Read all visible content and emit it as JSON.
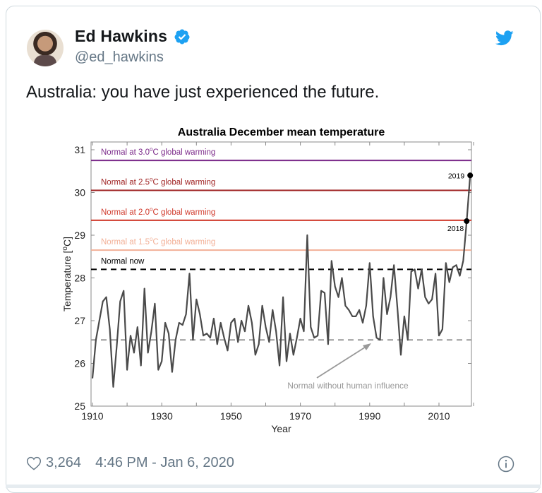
{
  "tweet": {
    "author_name": "Ed Hawkins",
    "author_handle": "@ed_hawkins",
    "verified": true,
    "text": "Australia: you have just experienced the future.",
    "likes": "3,264",
    "timestamp": "4:46 PM - Jan 6, 2020",
    "icons": {
      "verified": "verified-badge-icon",
      "brand": "twitter-bird-icon",
      "like": "heart-icon",
      "info": "info-icon"
    },
    "colors": {
      "brand": "#1da1f2",
      "text": "#14171a",
      "secondary": "#657786"
    }
  },
  "chart_data": {
    "type": "line",
    "title": "Australia December mean temperature",
    "xlabel": "Year",
    "ylabel": "Temperature [°C]",
    "xlim": [
      1909,
      2021
    ],
    "ylim": [
      25,
      31.2
    ],
    "xticks": [
      "1910",
      "1930",
      "1950",
      "1970",
      "1990",
      "2010"
    ],
    "yticks": [
      "25",
      "26",
      "27",
      "28",
      "29",
      "30",
      "31"
    ],
    "grid": false,
    "reference_lines": [
      {
        "label": "Normal at 3.0°C global warming",
        "value": 30.75,
        "color": "#7b2a8a",
        "style": "solid"
      },
      {
        "label": "Normal at 2.5°C global warming",
        "value": 30.05,
        "color": "#9e1f1f",
        "style": "solid"
      },
      {
        "label": "Normal at 2.0°C global warming",
        "value": 29.35,
        "color": "#d03a2c",
        "style": "solid"
      },
      {
        "label": "Normal at 1.5°C global warming",
        "value": 28.65,
        "color": "#f2b097",
        "style": "solid"
      },
      {
        "label": "Normal now",
        "value": 28.2,
        "color": "#000000",
        "style": "dashed"
      },
      {
        "label": "Normal without human influence",
        "value": 26.55,
        "color": "#999999",
        "style": "dashed"
      }
    ],
    "annotations": [
      {
        "text": "2019",
        "x": 2019,
        "y": 30.4
      },
      {
        "text": "2018",
        "x": 2018,
        "y": 29.33
      },
      {
        "text": "Normal without human influence",
        "arrow_to": [
          1993,
          26.55
        ]
      }
    ],
    "series": [
      {
        "name": "December mean temperature",
        "color": "#4a4a4a",
        "x": [
          1910,
          1911,
          1912,
          1913,
          1914,
          1915,
          1916,
          1917,
          1918,
          1919,
          1920,
          1921,
          1922,
          1923,
          1924,
          1925,
          1926,
          1927,
          1928,
          1929,
          1930,
          1931,
          1932,
          1933,
          1934,
          1935,
          1936,
          1937,
          1938,
          1939,
          1940,
          1941,
          1942,
          1943,
          1944,
          1945,
          1946,
          1947,
          1948,
          1949,
          1950,
          1951,
          1952,
          1953,
          1954,
          1955,
          1956,
          1957,
          1958,
          1959,
          1960,
          1961,
          1962,
          1963,
          1964,
          1965,
          1966,
          1967,
          1968,
          1969,
          1970,
          1971,
          1972,
          1973,
          1974,
          1975,
          1976,
          1977,
          1978,
          1979,
          1980,
          1981,
          1982,
          1983,
          1984,
          1985,
          1986,
          1987,
          1988,
          1989,
          1990,
          1991,
          1992,
          1993,
          1994,
          1995,
          1996,
          1997,
          1998,
          1999,
          2000,
          2001,
          2002,
          2003,
          2004,
          2005,
          2006,
          2007,
          2008,
          2009,
          2010,
          2011,
          2012,
          2013,
          2014,
          2015,
          2016,
          2017,
          2018,
          2019
        ],
        "values": [
          25.65,
          26.55,
          27.0,
          27.45,
          27.55,
          26.8,
          25.45,
          26.4,
          27.45,
          27.7,
          25.85,
          26.65,
          26.25,
          26.85,
          25.95,
          27.75,
          26.25,
          26.75,
          27.4,
          25.85,
          26.05,
          26.95,
          26.7,
          25.8,
          26.55,
          26.95,
          26.9,
          27.15,
          28.1,
          26.55,
          27.5,
          27.15,
          26.65,
          26.7,
          26.6,
          27.05,
          26.45,
          26.95,
          26.6,
          26.3,
          26.95,
          27.05,
          26.5,
          27.0,
          26.75,
          27.35,
          26.95,
          26.2,
          26.45,
          27.35,
          26.85,
          26.5,
          27.25,
          26.75,
          25.95,
          27.55,
          26.05,
          26.7,
          26.2,
          26.6,
          27.05,
          26.75,
          29.0,
          26.85,
          26.6,
          26.65,
          27.7,
          27.65,
          26.45,
          28.4,
          27.8,
          27.55,
          28.0,
          27.35,
          27.25,
          27.1,
          27.1,
          27.25,
          26.95,
          27.35,
          28.35,
          27.1,
          26.6,
          26.55,
          28.0,
          27.15,
          27.55,
          28.3,
          27.3,
          26.2,
          27.1,
          26.55,
          28.15,
          28.2,
          27.75,
          28.2,
          27.55,
          27.4,
          27.5,
          28.1,
          26.65,
          26.8,
          28.35,
          27.9,
          28.25,
          28.3,
          28.05,
          28.4,
          29.33,
          30.4
        ]
      }
    ]
  }
}
